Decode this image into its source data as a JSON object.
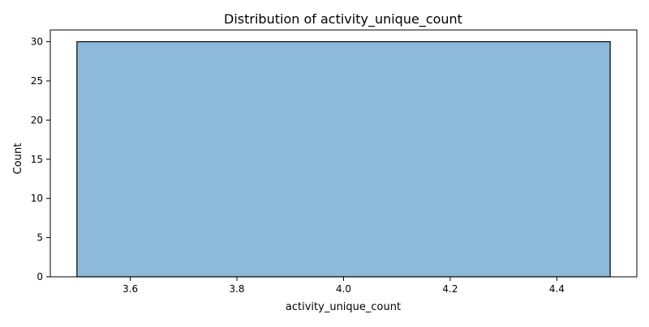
{
  "chart_data": {
    "type": "bar",
    "title": "Distribution of activity_unique_count",
    "xlabel": "activity_unique_count",
    "ylabel": "Count",
    "bins": [
      {
        "x_start": 3.5,
        "x_end": 4.5,
        "count": 30
      }
    ],
    "xlim": [
      3.45,
      4.55
    ],
    "ylim": [
      0,
      31.5
    ],
    "xticks": [
      3.6,
      3.8,
      4.0,
      4.2,
      4.4
    ],
    "xtick_labels": [
      "3.6",
      "3.8",
      "4.0",
      "4.2",
      "4.4"
    ],
    "yticks": [
      0,
      5,
      10,
      15,
      20,
      25,
      30
    ],
    "ytick_labels": [
      "0",
      "5",
      "10",
      "15",
      "20",
      "25",
      "30"
    ],
    "grid": false,
    "legend": "none",
    "bar_color": "#8db9da",
    "edge_color": "#000000"
  }
}
